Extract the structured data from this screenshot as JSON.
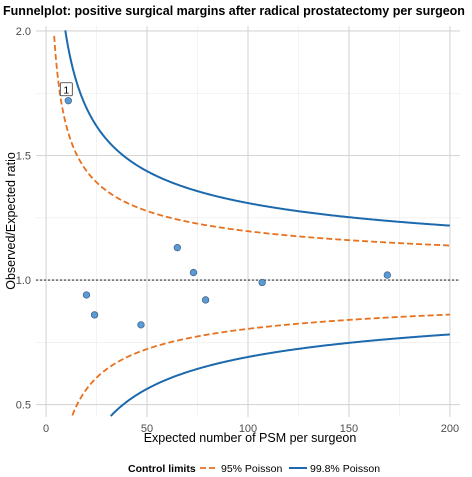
{
  "chart_data": {
    "type": "scatter",
    "title": "Funnelplot: positive surgical margins after radical prostatectomy per surgeon",
    "xlabel": "Expected number of PSM per surgeon",
    "ylabel": "Observed/Expected ratio",
    "xlim": [
      -5,
      205
    ],
    "ylim": [
      0.45,
      2.02
    ],
    "x_ticks": [
      0,
      50,
      100,
      150,
      200
    ],
    "x_tick_labels": [
      "0",
      "50",
      "100",
      "150",
      "200"
    ],
    "y_ticks": [
      0.5,
      1.0,
      1.5,
      2.0
    ],
    "y_tick_labels": [
      "0.5",
      "1.0",
      "1.5",
      "2.0"
    ],
    "grid": true,
    "reference_line": {
      "y": 1.0,
      "style": "dotted",
      "color": "#000000"
    },
    "points": [
      {
        "x": 11,
        "y": 1.72,
        "label": "1"
      },
      {
        "x": 20,
        "y": 0.94
      },
      {
        "x": 24,
        "y": 0.86
      },
      {
        "x": 47,
        "y": 0.82
      },
      {
        "x": 65,
        "y": 1.13
      },
      {
        "x": 73,
        "y": 1.03
      },
      {
        "x": 79,
        "y": 0.92
      },
      {
        "x": 107,
        "y": 0.99
      },
      {
        "x": 169,
        "y": 1.02
      }
    ],
    "point_color": "#5b9bd5",
    "limits": [
      {
        "name": "95% Poisson",
        "z": 1.96,
        "color": "#e8711f",
        "style": "dashed"
      },
      {
        "name": "99.8% Poisson",
        "z": 3.09,
        "color": "#1c6aad",
        "style": "solid"
      }
    ],
    "legend": {
      "title": "Control limits",
      "position": "bottom"
    }
  }
}
